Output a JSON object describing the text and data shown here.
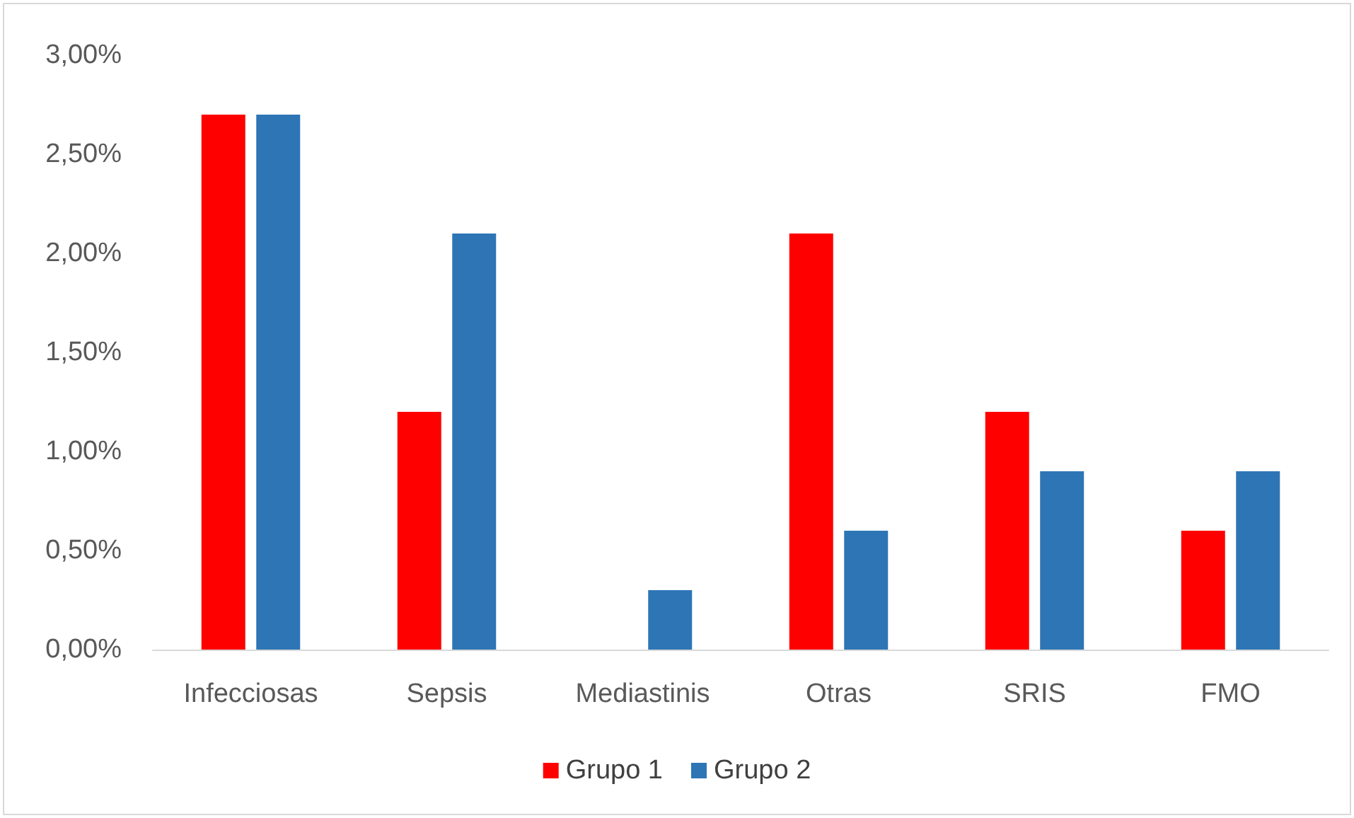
{
  "chart_data": {
    "type": "bar",
    "categories": [
      "Infecciosas",
      "Sepsis",
      "Mediastinis",
      "Otras",
      "SRIS",
      "FMO"
    ],
    "series": [
      {
        "name": "Grupo 1",
        "color": "#ff0000",
        "values": [
          2.7,
          1.2,
          0,
          2.1,
          1.2,
          0.6
        ]
      },
      {
        "name": "Grupo 2",
        "color": "#2e75b6",
        "values": [
          2.7,
          2.1,
          0.3,
          0.6,
          0.9,
          0.9
        ]
      }
    ],
    "ylim": [
      0,
      3
    ],
    "yticks": [
      {
        "value": 0,
        "label": "0,00%"
      },
      {
        "value": 0.5,
        "label": "0,50%"
      },
      {
        "value": 1,
        "label": "1,00%"
      },
      {
        "value": 1.5,
        "label": "1,50%"
      },
      {
        "value": 2,
        "label": "2,00%"
      },
      {
        "value": 2.5,
        "label": "2,50%"
      },
      {
        "value": 3,
        "label": "3,00%"
      }
    ],
    "grid": false,
    "legend": "bottom"
  }
}
